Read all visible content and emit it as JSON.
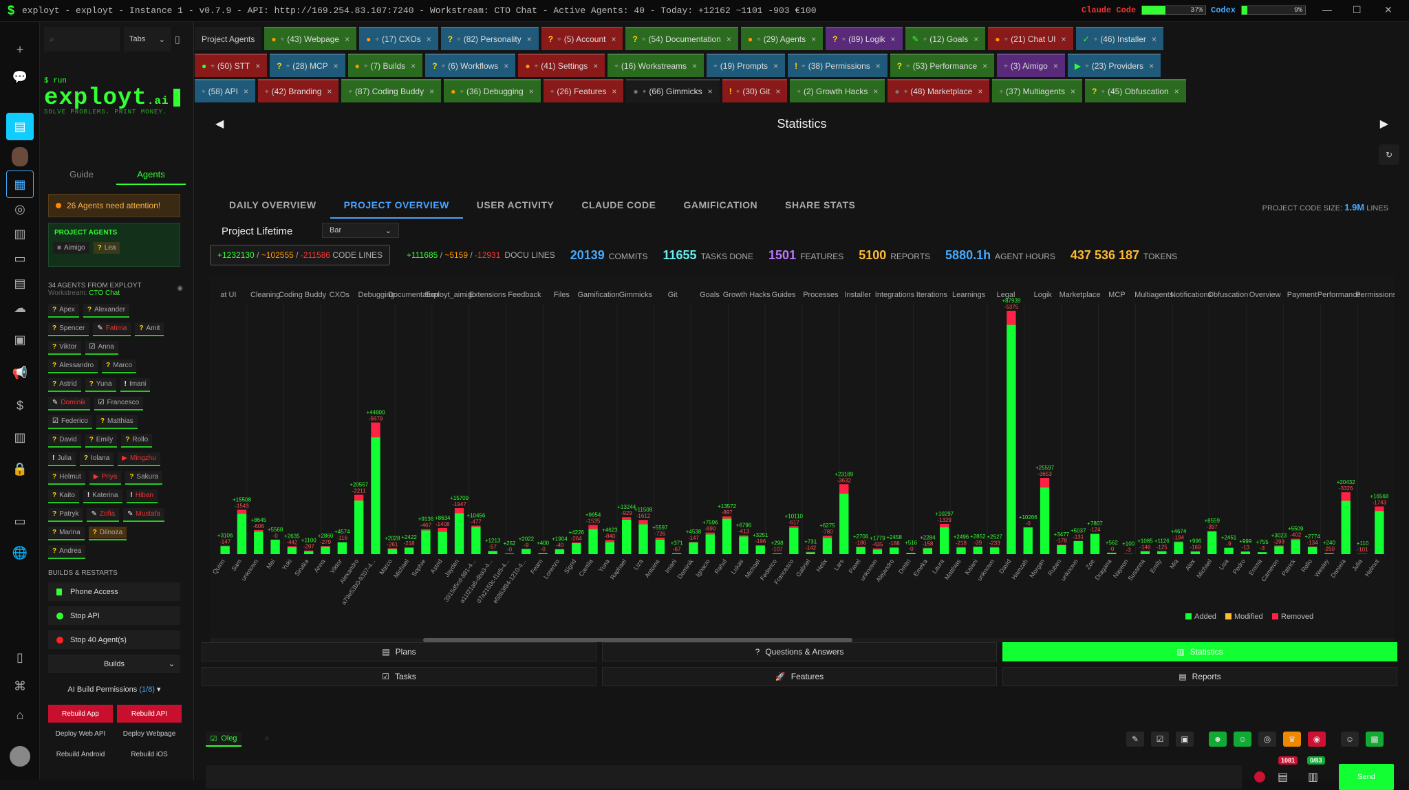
{
  "titlebar": {
    "title": "exployt - exployt - Instance 1 - v0.7.9 - API: http://169.254.83.107:7240 - Workstream: CTO Chat - Active Agents: 40 - Today: +12162 ~1101 -903 €100",
    "claude_label": "Claude Code",
    "claude_pct": "37%",
    "claude_value": 0.37,
    "codex_label": "Codex",
    "codex_pct": "9%",
    "codex_value": 0.09
  },
  "sidebar": {
    "tabs_select": "Tabs",
    "brand": {
      "run": "$ run",
      "name": "exployt",
      "suffix": ".ai",
      "slogan": "SOLVE PROBLEMS. PRINT MONEY."
    },
    "tab_guide": "Guide",
    "tab_agents": "Agents",
    "attention": "26 Agents need attention!",
    "project_agents_title": "PROJECT AGENTS",
    "project_agents": [
      {
        "icon": "■",
        "name": "Aimigo"
      },
      {
        "icon": "?",
        "name": "Lea"
      }
    ],
    "agents_header": "34  AGENTS FROM  EXPLOYT",
    "workstream_label": "Workstream:",
    "workstream_value": "CTO Chat",
    "agents": [
      [
        {
          "i": "?",
          "n": "Apex",
          "c": ""
        },
        {
          "i": "?",
          "n": "Alexander",
          "c": ""
        }
      ],
      [
        {
          "i": "?",
          "n": "Spencer",
          "c": ""
        },
        {
          "i": "✎",
          "n": "Fatima",
          "c": "red"
        },
        {
          "i": "?",
          "n": "Amit",
          "c": ""
        }
      ],
      [
        {
          "i": "?",
          "n": "Viktor",
          "c": ""
        },
        {
          "i": "☑",
          "n": "Anna",
          "c": ""
        }
      ],
      [
        {
          "i": "?",
          "n": "Alessandro",
          "c": ""
        },
        {
          "i": "?",
          "n": "Marco",
          "c": ""
        }
      ],
      [
        {
          "i": "?",
          "n": "Astrid",
          "c": ""
        },
        {
          "i": "?",
          "n": "Yuna",
          "c": ""
        },
        {
          "i": "!",
          "n": "Imani",
          "c": ""
        }
      ],
      [
        {
          "i": "✎",
          "n": "Dominik",
          "c": "red"
        },
        {
          "i": "☑",
          "n": "Francesco",
          "c": ""
        }
      ],
      [
        {
          "i": "☑",
          "n": "Federico",
          "c": ""
        },
        {
          "i": "?",
          "n": "Matthias",
          "c": ""
        }
      ],
      [
        {
          "i": "?",
          "n": "David",
          "c": ""
        },
        {
          "i": "?",
          "n": "Emily",
          "c": ""
        },
        {
          "i": "?",
          "n": "Rollo",
          "c": ""
        }
      ],
      [
        {
          "i": "!",
          "n": "Julia",
          "c": ""
        },
        {
          "i": "?",
          "n": "Iolana",
          "c": ""
        },
        {
          "i": "▶",
          "n": "Mingzhu",
          "c": "red"
        }
      ],
      [
        {
          "i": "?",
          "n": "Helmut",
          "c": ""
        },
        {
          "i": "▶",
          "n": "Priya",
          "c": "red"
        },
        {
          "i": "?",
          "n": "Sakura",
          "c": ""
        }
      ],
      [
        {
          "i": "?",
          "n": "Kaito",
          "c": ""
        },
        {
          "i": "!",
          "n": "Katerina",
          "c": ""
        },
        {
          "i": "!",
          "n": "Hiban",
          "c": "red"
        }
      ],
      [
        {
          "i": "?",
          "n": "Patryk",
          "c": ""
        },
        {
          "i": "✎",
          "n": "Zofia",
          "c": "red"
        },
        {
          "i": "✎",
          "n": "Mustafa",
          "c": "red"
        }
      ],
      [
        {
          "i": "?",
          "n": "Marina",
          "c": ""
        },
        {
          "i": "?",
          "n": "Dilnoza",
          "c": "orange"
        }
      ],
      [
        {
          "i": "?",
          "n": "Andrea",
          "c": ""
        }
      ]
    ],
    "builds_header": "BUILDS & RESTARTS",
    "phone_access": "Phone Access",
    "stop_api": "Stop API",
    "stop_agents": "Stop 40 Agent(s)",
    "builds_select": "Builds",
    "ai_build": "AI Build Permissions",
    "ai_build_count": "(1/8)",
    "rebuild_app": "Rebuild App",
    "rebuild_api": "Rebuild API",
    "deploy_web_api": "Deploy Web API",
    "deploy_webpage": "Deploy Webpage",
    "rebuild_android": "Rebuild Android",
    "rebuild_ios": "Rebuild iOS"
  },
  "tabs": {
    "row1": [
      {
        "label": "Project Agents",
        "icon": "",
        "color": "#1c1c1c",
        "first": true
      },
      {
        "label": "(43) Webpage",
        "icon": "●",
        "ic": "#f90",
        "color": "#2a6b1f"
      },
      {
        "label": "(17) CXOs",
        "icon": "●",
        "ic": "#f90",
        "color": "#1f5a7a"
      },
      {
        "label": "(82) Personality",
        "icon": "?",
        "ic": "#ffd700",
        "color": "#1f5a7a"
      },
      {
        "label": "(5) Account",
        "icon": "?",
        "ic": "#ffd700",
        "color": "#8a1a1a"
      },
      {
        "label": "(54) Documentation",
        "icon": "?",
        "ic": "#ffd700",
        "color": "#2a6b1f"
      },
      {
        "label": "(29) Agents",
        "icon": "●",
        "ic": "#f90",
        "color": "#2a6b1f"
      },
      {
        "label": "(89) Logik",
        "icon": "?",
        "ic": "#ffd700",
        "color": "#5a2a7a"
      },
      {
        "label": "(12) Goals",
        "icon": "✎",
        "ic": "#3f3",
        "color": "#2a6b1f"
      },
      {
        "label": "(21) Chat UI",
        "icon": "●",
        "ic": "#f90",
        "color": "#8a1a1a"
      },
      {
        "label": "(46) Installer",
        "icon": "✓",
        "ic": "#3f3",
        "color": "#1f5a7a"
      }
    ],
    "row2": [
      {
        "label": "(50) STT",
        "icon": "●",
        "ic": "#3f3",
        "color": "#8a1a1a"
      },
      {
        "label": "(28) MCP",
        "icon": "?",
        "ic": "#ffd700",
        "color": "#1f5a7a"
      },
      {
        "label": "(7) Builds",
        "icon": "●",
        "ic": "#f90",
        "color": "#2a6b1f"
      },
      {
        "label": "(6) Workflows",
        "icon": "?",
        "ic": "#ffd700",
        "color": "#1f5a7a"
      },
      {
        "label": "(41) Settings",
        "icon": "●",
        "ic": "#f90",
        "color": "#8a1a1a"
      },
      {
        "label": "(16) Workstreams",
        "icon": "",
        "ic": "#ccc",
        "color": "#2a6b1f"
      },
      {
        "label": "(19) Prompts",
        "icon": "",
        "ic": "#ccc",
        "color": "#1f5a7a"
      },
      {
        "label": "(38) Permissions",
        "icon": "!",
        "ic": "#ffd700",
        "color": "#1f5a7a"
      },
      {
        "label": "(53) Performance",
        "icon": "?",
        "ic": "#ffd700",
        "color": "#2a6b1f"
      },
      {
        "label": "(3) Aimigo",
        "icon": "",
        "ic": "#ccc",
        "color": "#5a2a7a"
      },
      {
        "label": "(23) Providers",
        "icon": "▶",
        "ic": "#3f3",
        "color": "#1f5a7a"
      }
    ],
    "row3": [
      {
        "label": "(58) API",
        "icon": "",
        "ic": "#ccc",
        "color": "#1f5a7a"
      },
      {
        "label": "(42) Branding",
        "icon": "",
        "ic": "#ccc",
        "color": "#8a1a1a"
      },
      {
        "label": "(87) Coding Buddy",
        "icon": "",
        "ic": "#ccc",
        "color": "#2a6b1f"
      },
      {
        "label": "(36) Debugging",
        "icon": "●",
        "ic": "#f90",
        "color": "#2a6b1f"
      },
      {
        "label": "(26) Features",
        "icon": "",
        "ic": "#ccc",
        "color": "#8a1a1a"
      },
      {
        "label": "(66) Gimmicks",
        "icon": "●",
        "ic": "#777",
        "color": "#1a1a1a"
      },
      {
        "label": "(30) Git",
        "icon": "!",
        "ic": "#ffd700",
        "color": "#8a1a1a"
      },
      {
        "label": "(2) Growth Hacks",
        "icon": "",
        "ic": "#ccc",
        "color": "#2a6b1f"
      },
      {
        "label": "(48) Marketplace",
        "icon": "●",
        "ic": "#777",
        "color": "#8a1a1a"
      },
      {
        "label": "(37) Multiagents",
        "icon": "",
        "ic": "#ccc",
        "color": "#2a6b1f"
      },
      {
        "label": "(45) Obfuscation",
        "icon": "?",
        "ic": "#ffd700",
        "color": "#2a6b1f"
      }
    ]
  },
  "statistics": {
    "title": "Statistics",
    "subtabs": [
      "DAILY OVERVIEW",
      "PROJECT OVERVIEW",
      "USER ACTIVITY",
      "CLAUDE CODE",
      "GAMIFICATION",
      "SHARE STATS"
    ],
    "code_size_label": "PROJECT CODE SIZE:",
    "code_size_value": "1.9M",
    "code_size_unit": "LINES",
    "lifetime_label": "Project Lifetime",
    "chart_select": "Bar",
    "code_added": "+1232130",
    "code_modified": "~102555",
    "code_removed": "-211586",
    "code_label": "CODE LINES",
    "docu_added": "+111685",
    "docu_modified": "~5159",
    "docu_removed": "-12931",
    "docu_label": "DOCU LINES",
    "commits": "20139",
    "commits_label": "COMMITS",
    "tasks": "11655",
    "tasks_label": "TASKS DONE",
    "features": "1501",
    "features_label": "FEATURES",
    "reports": "5100",
    "reports_label": "REPORTS",
    "hours": "5880.1h",
    "hours_label": "AGENT HOURS",
    "tokens": "437 536 187",
    "tokens_label": "TOKENS"
  },
  "chart_data": {
    "type": "bar",
    "stacked": true,
    "legend": [
      "Added",
      "Modified",
      "Removed"
    ],
    "legend_position": "bottom-right",
    "colors": {
      "added": "#1f3",
      "modified": "#fb3",
      "removed": "#f24"
    },
    "groups": [
      "at UI",
      "Cleaning",
      "Coding Buddy",
      "CXOs",
      "Debugging",
      "Documentation",
      "Exployt_aimigo",
      "Extensions",
      "Feedback",
      "Files",
      "Gamification",
      "Gimmicks",
      "Git",
      "Goals",
      "Growth Hacks",
      "Guides",
      "Processes",
      "Installer",
      "Integrations",
      "Iterations",
      "Learnings",
      "Legal",
      "Logik",
      "Marketplace",
      "MCP",
      "Multiagents",
      "Notifications",
      "Obfuscation",
      "Overview",
      "Payment",
      "Performance",
      "Permissions"
    ],
    "categories": [
      "Quinn",
      "Sam",
      "unknown",
      "Mei",
      "Yuki",
      "Sinaka",
      "Anna",
      "Viktor",
      "Alexandro",
      "a79e53b0-9307-4...",
      "Marco",
      "Michael",
      "Sophie",
      "Astrid",
      "Jayden",
      "3915d5cd-881-4...",
      "a11f21a6-dba3-4...",
      "d7a2150c-f1e5-4...",
      "e5863f84-1210-4...",
      "Fearn",
      "Lorenzo",
      "Sigrid",
      "Camila",
      "Yuna",
      "Raphael",
      "Liza",
      "Antoine",
      "Imani",
      "Dominik",
      "Ignacio",
      "Rahul",
      "Lukas",
      "Michael",
      "Federico",
      "Francesco",
      "Gabriel",
      "Helix",
      "Lars",
      "Pavel",
      "unknown",
      "Alejandro",
      "Dmitri",
      "Emeka",
      "Laura",
      "Matthias",
      "Kalani",
      "unknown",
      "David",
      "Hamzah",
      "Morgan",
      "Ruben",
      "unknown",
      "Zoe",
      "Dragana",
      "Nayeon",
      "Susanna",
      "Emily",
      "Mia",
      "Alex",
      "Michael",
      "Lisa",
      "Pedro",
      "Emma",
      "Cameron",
      "Patrick",
      "Rollo",
      "Wesley",
      "Daniela",
      "Julia",
      "Helmut"
    ],
    "values": [
      {
        "a": 3106,
        "m": 0,
        "r": 147
      },
      {
        "a": 15508,
        "m": 0,
        "r": 1543
      },
      {
        "a": 8645,
        "m": 0,
        "r": 606
      },
      {
        "a": 5568,
        "m": 0,
        "r": 0
      },
      {
        "a": 2635,
        "m": 0,
        "r": 442
      },
      {
        "a": 1100,
        "m": 0,
        "r": 297
      },
      {
        "a": 2860,
        "m": 0,
        "r": 279
      },
      {
        "a": 4574,
        "m": 0,
        "r": 116
      },
      {
        "a": 20557,
        "m": 0,
        "r": 2211
      },
      {
        "a": 44800,
        "m": 0,
        "r": 5679
      },
      {
        "a": 2028,
        "m": 0,
        "r": 261
      },
      {
        "a": 2422,
        "m": 0,
        "r": 218
      },
      {
        "a": 9136,
        "m": 0,
        "r": 467
      },
      {
        "a": 8634,
        "m": 0,
        "r": 1408
      },
      {
        "a": 15709,
        "m": 0,
        "r": 1947
      },
      {
        "a": 10456,
        "m": 0,
        "r": 477
      },
      {
        "a": 1213,
        "m": 0,
        "r": 57
      },
      {
        "a": 252,
        "m": 0,
        "r": 0
      },
      {
        "a": 2022,
        "m": 0,
        "r": 9
      },
      {
        "a": 400,
        "m": 0,
        "r": 0
      },
      {
        "a": 1904,
        "m": 0,
        "r": 40
      },
      {
        "a": 4226,
        "m": 0,
        "r": 264
      },
      {
        "a": 9654,
        "m": 0,
        "r": 1535
      },
      {
        "a": 4623,
        "m": 0,
        "r": 840
      },
      {
        "a": 13244,
        "m": 0,
        "r": 929
      },
      {
        "a": 11508,
        "m": 0,
        "r": 1612
      },
      {
        "a": 5597,
        "m": 0,
        "r": 726
      },
      {
        "a": 371,
        "m": 0,
        "r": 67
      },
      {
        "a": 4538,
        "m": 0,
        "r": 147
      },
      {
        "a": 7596,
        "m": 0,
        "r": 690
      },
      {
        "a": 13572,
        "m": 0,
        "r": 897
      },
      {
        "a": 6796,
        "m": 0,
        "r": 413
      },
      {
        "a": 3251,
        "m": 0,
        "r": 196
      },
      {
        "a": 298,
        "m": 0,
        "r": 107
      },
      {
        "a": 10110,
        "m": 0,
        "r": 617
      },
      {
        "a": 731,
        "m": 0,
        "r": 142
      },
      {
        "a": 6275,
        "m": 0,
        "r": 780
      },
      {
        "a": 23189,
        "m": 0,
        "r": 3632
      },
      {
        "a": 2706,
        "m": 0,
        "r": 186
      },
      {
        "a": 1779,
        "m": 0,
        "r": 435
      },
      {
        "a": 2458,
        "m": 0,
        "r": 188
      },
      {
        "a": 516,
        "m": 0,
        "r": 0
      },
      {
        "a": 2284,
        "m": 0,
        "r": 158
      },
      {
        "a": 10297,
        "m": 0,
        "r": 1329
      },
      {
        "a": 2496,
        "m": 0,
        "r": 218
      },
      {
        "a": 2852,
        "m": 0,
        "r": 39
      },
      {
        "a": 2527,
        "m": 0,
        "r": 233
      },
      {
        "a": 87939,
        "m": 0,
        "r": 5375
      },
      {
        "a": 10266,
        "m": 0,
        "r": 0
      },
      {
        "a": 25597,
        "m": 0,
        "r": 3653
      },
      {
        "a": 3477,
        "m": 0,
        "r": 178
      },
      {
        "a": 5037,
        "m": 0,
        "r": 131
      },
      {
        "a": 7807,
        "m": 0,
        "r": 124
      },
      {
        "a": 562,
        "m": 0,
        "r": 0
      },
      {
        "a": 100,
        "m": 0,
        "r": 3
      },
      {
        "a": 1085,
        "m": 0,
        "r": 146
      },
      {
        "a": 1126,
        "m": 0,
        "r": 125
      },
      {
        "a": 4674,
        "m": 0,
        "r": 194
      },
      {
        "a": 996,
        "m": 0,
        "r": 169
      },
      {
        "a": 8559,
        "m": 0,
        "r": 397
      },
      {
        "a": 2451,
        "m": 0,
        "r": 9
      },
      {
        "a": 999,
        "m": 0,
        "r": 13
      },
      {
        "a": 755,
        "m": 0,
        "r": 3
      },
      {
        "a": 3023,
        "m": 0,
        "r": 293
      },
      {
        "a": 5509,
        "m": 0,
        "r": 402
      },
      {
        "a": 2774,
        "m": 0,
        "r": 134
      },
      {
        "a": 240,
        "m": 0,
        "r": 250
      },
      {
        "a": 20432,
        "m": 0,
        "r": 3326
      },
      {
        "a": 110,
        "m": 0,
        "r": 101
      },
      {
        "a": 16568,
        "m": 0,
        "r": 1743
      }
    ]
  },
  "bottom": {
    "plans": "Plans",
    "qa": "Questions & Answers",
    "statistics": "Statistics",
    "tasks": "Tasks",
    "features": "Features",
    "reports": "Reports",
    "user": "Oleg",
    "send": "Send",
    "badge1": "1081",
    "badge2": "0/83"
  }
}
